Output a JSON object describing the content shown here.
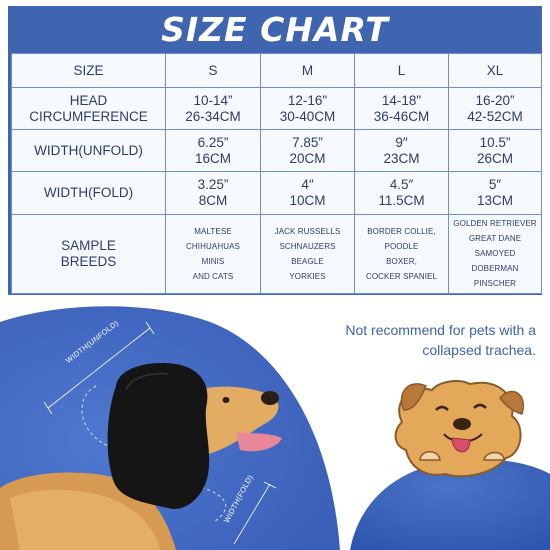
{
  "title": "SIZE CHART",
  "table": {
    "header": [
      "SIZE",
      "S",
      "M",
      "L",
      "XL"
    ],
    "rows": [
      {
        "label": [
          "HEAD",
          "CIRCUMFERENCE"
        ],
        "cells": [
          [
            "10-14”",
            "26-34CM"
          ],
          [
            "12-16\"",
            "30-40CM"
          ],
          [
            "14-18\"",
            "36-46CM"
          ],
          [
            "16-20”",
            "42-52CM"
          ]
        ]
      },
      {
        "label": [
          "WIDTH(UNFOLD)"
        ],
        "cells": [
          [
            "6.25”",
            "16CM"
          ],
          [
            "7.85”",
            "20CM"
          ],
          [
            "9″",
            "23CM"
          ],
          [
            "10.5”",
            "26CM"
          ]
        ]
      },
      {
        "label": [
          "WIDTH(FOLD)"
        ],
        "cells": [
          [
            "3.25”",
            "8CM"
          ],
          [
            "4″",
            "10CM"
          ],
          [
            "4.5″",
            "11.5CM"
          ],
          [
            "5″",
            "13CM"
          ]
        ]
      },
      {
        "label": [
          "SAMPLE",
          "BREEDS"
        ],
        "cells": [
          [
            "MALTESE",
            "CHIHUAHUAS",
            "MINIS",
            "AND CATS"
          ],
          [
            "JACK RUSSELLS",
            "SCHNAUZERS",
            "BEAGLE",
            "YORKIES"
          ],
          [
            "BORDER COLLIE,",
            "POODLE",
            "BOXER,",
            "COCKER SPANIEL"
          ],
          [
            "GOLDEN RETRIEVER",
            "GREAT DANE",
            "SAMOYED",
            "DOBERMAN PINSCHER"
          ]
        ]
      }
    ]
  },
  "note": [
    "Not recommend for pets with a",
    "collapsed trachea."
  ],
  "labels": {
    "width_unfold": "WIDTH(UNFOLD)",
    "width_fold": "WIDTH(FOLD)"
  },
  "colors": {
    "brand_blue": "#3f64b0",
    "grid_blue": "#6f8fd3",
    "text_navy": "#2e3c6c",
    "table_bg": "#f6f9fd",
    "hood_black": "#151515",
    "dog_gold": "#e0a85c"
  },
  "icons": [
    "dog-in-hood-photo",
    "cartoon-puppy-icon"
  ]
}
